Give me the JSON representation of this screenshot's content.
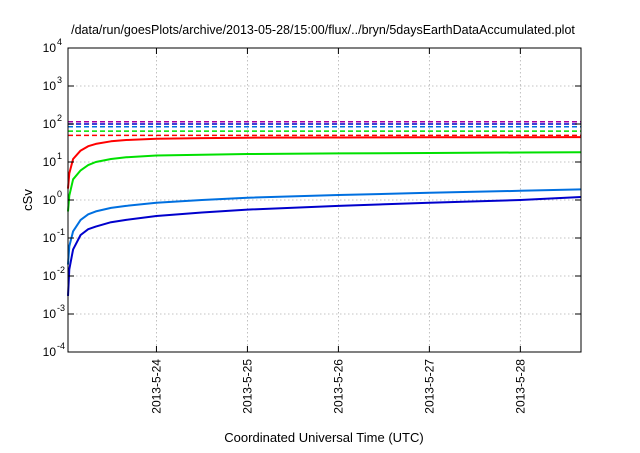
{
  "chart_data": {
    "type": "line",
    "title": "/data/run/goesPlots/archive/2013-05-28/15:00/flux/../bryn/5daysEarthDataAccumulated.plot",
    "xlabel": "Coordinated Universal Time (UTC)",
    "ylabel": "cSv",
    "y_scale": "log",
    "ylim": [
      0.0001,
      10000
    ],
    "xlim": [
      "2013-05-23 00:40",
      "2013-05-28 16:00"
    ],
    "grid": true,
    "y_ticks": [
      {
        "value": 0.0001,
        "base": "10",
        "exp": "-4"
      },
      {
        "value": 0.001,
        "base": "10",
        "exp": "-3"
      },
      {
        "value": 0.01,
        "base": "10",
        "exp": "-2"
      },
      {
        "value": 0.1,
        "base": "10",
        "exp": "-1"
      },
      {
        "value": 1,
        "base": "10",
        "exp": "0"
      },
      {
        "value": 10,
        "base": "10",
        "exp": "1"
      },
      {
        "value": 100,
        "base": "10",
        "exp": "2"
      },
      {
        "value": 1000,
        "base": "10",
        "exp": "3"
      },
      {
        "value": 10000,
        "base": "10",
        "exp": "4"
      }
    ],
    "x_ticks": [
      "2013-5-24",
      "2013-5-25",
      "2013-5-26",
      "2013-5-27",
      "2013-5-28"
    ],
    "series": [
      {
        "color": "#ff0000",
        "style": "solid",
        "x": [
          "2013-05-23 00:40",
          "2013-05-23 01:00",
          "2013-05-23 02:00",
          "2013-05-23 04:00",
          "2013-05-23 06:00",
          "2013-05-23 08:00",
          "2013-05-23 12:00",
          "2013-05-23 16:00",
          "2013-05-24 00:00",
          "2013-05-24 12:00",
          "2013-05-25 00:00",
          "2013-05-26 00:00",
          "2013-05-27 00:00",
          "2013-05-28 00:00",
          "2013-05-28 16:00"
        ],
        "y": [
          2,
          5,
          12,
          20,
          26,
          30,
          35,
          38,
          41,
          42.5,
          43.5,
          44.2,
          44.7,
          45,
          45.2
        ]
      },
      {
        "color": "#00e000",
        "style": "solid",
        "x": [
          "2013-05-23 00:40",
          "2013-05-23 01:00",
          "2013-05-23 02:00",
          "2013-05-23 04:00",
          "2013-05-23 06:00",
          "2013-05-23 08:00",
          "2013-05-23 12:00",
          "2013-05-23 16:00",
          "2013-05-24 00:00",
          "2013-05-24 12:00",
          "2013-05-25 00:00",
          "2013-05-26 00:00",
          "2013-05-27 00:00",
          "2013-05-28 00:00",
          "2013-05-28 16:00"
        ],
        "y": [
          0.5,
          1.3,
          3.5,
          6,
          8.3,
          10,
          12,
          13.3,
          14.8,
          15.6,
          16.2,
          16.8,
          17.3,
          17.8,
          18
        ]
      },
      {
        "color": "#0070e0",
        "style": "solid",
        "x": [
          "2013-05-23 00:40",
          "2013-05-23 01:00",
          "2013-05-23 02:00",
          "2013-05-23 04:00",
          "2013-05-23 06:00",
          "2013-05-23 08:00",
          "2013-05-23 12:00",
          "2013-05-23 16:00",
          "2013-05-24 00:00",
          "2013-05-24 12:00",
          "2013-05-25 00:00",
          "2013-05-26 00:00",
          "2013-05-27 00:00",
          "2013-05-28 00:00",
          "2013-05-28 16:00"
        ],
        "y": [
          0.02,
          0.06,
          0.15,
          0.3,
          0.42,
          0.5,
          0.62,
          0.7,
          0.85,
          1,
          1.15,
          1.35,
          1.55,
          1.75,
          1.9
        ]
      },
      {
        "color": "#0000cc",
        "style": "solid",
        "x": [
          "2013-05-23 00:40",
          "2013-05-23 01:00",
          "2013-05-23 02:00",
          "2013-05-23 04:00",
          "2013-05-23 06:00",
          "2013-05-23 08:00",
          "2013-05-23 12:00",
          "2013-05-23 16:00",
          "2013-05-24 00:00",
          "2013-05-24 12:00",
          "2013-05-25 00:00",
          "2013-05-26 00:00",
          "2013-05-27 00:00",
          "2013-05-28 00:00",
          "2013-05-28 16:00"
        ],
        "y": [
          0.003,
          0.015,
          0.05,
          0.12,
          0.17,
          0.2,
          0.26,
          0.3,
          0.38,
          0.47,
          0.56,
          0.7,
          0.85,
          1,
          1.2
        ]
      },
      {
        "color": "#ff0000",
        "style": "dashed",
        "x": [
          "2013-05-23 00:40",
          "2013-05-28 16:00"
        ],
        "y": [
          50,
          50
        ]
      },
      {
        "color": "#00e000",
        "style": "dashed",
        "x": [
          "2013-05-23 00:40",
          "2013-05-28 16:00"
        ],
        "y": [
          65,
          65
        ]
      },
      {
        "color": "#0070e0",
        "style": "dashed",
        "x": [
          "2013-05-23 00:40",
          "2013-05-28 16:00"
        ],
        "y": [
          85,
          85
        ]
      },
      {
        "color": "#0000cc",
        "style": "dashed",
        "x": [
          "2013-05-23 00:40",
          "2013-05-28 16:00"
        ],
        "y": [
          100,
          100
        ]
      },
      {
        "color": "#a000a0",
        "style": "dashed",
        "x": [
          "2013-05-23 00:40",
          "2013-05-28 16:00"
        ],
        "y": [
          115,
          115
        ]
      }
    ]
  }
}
